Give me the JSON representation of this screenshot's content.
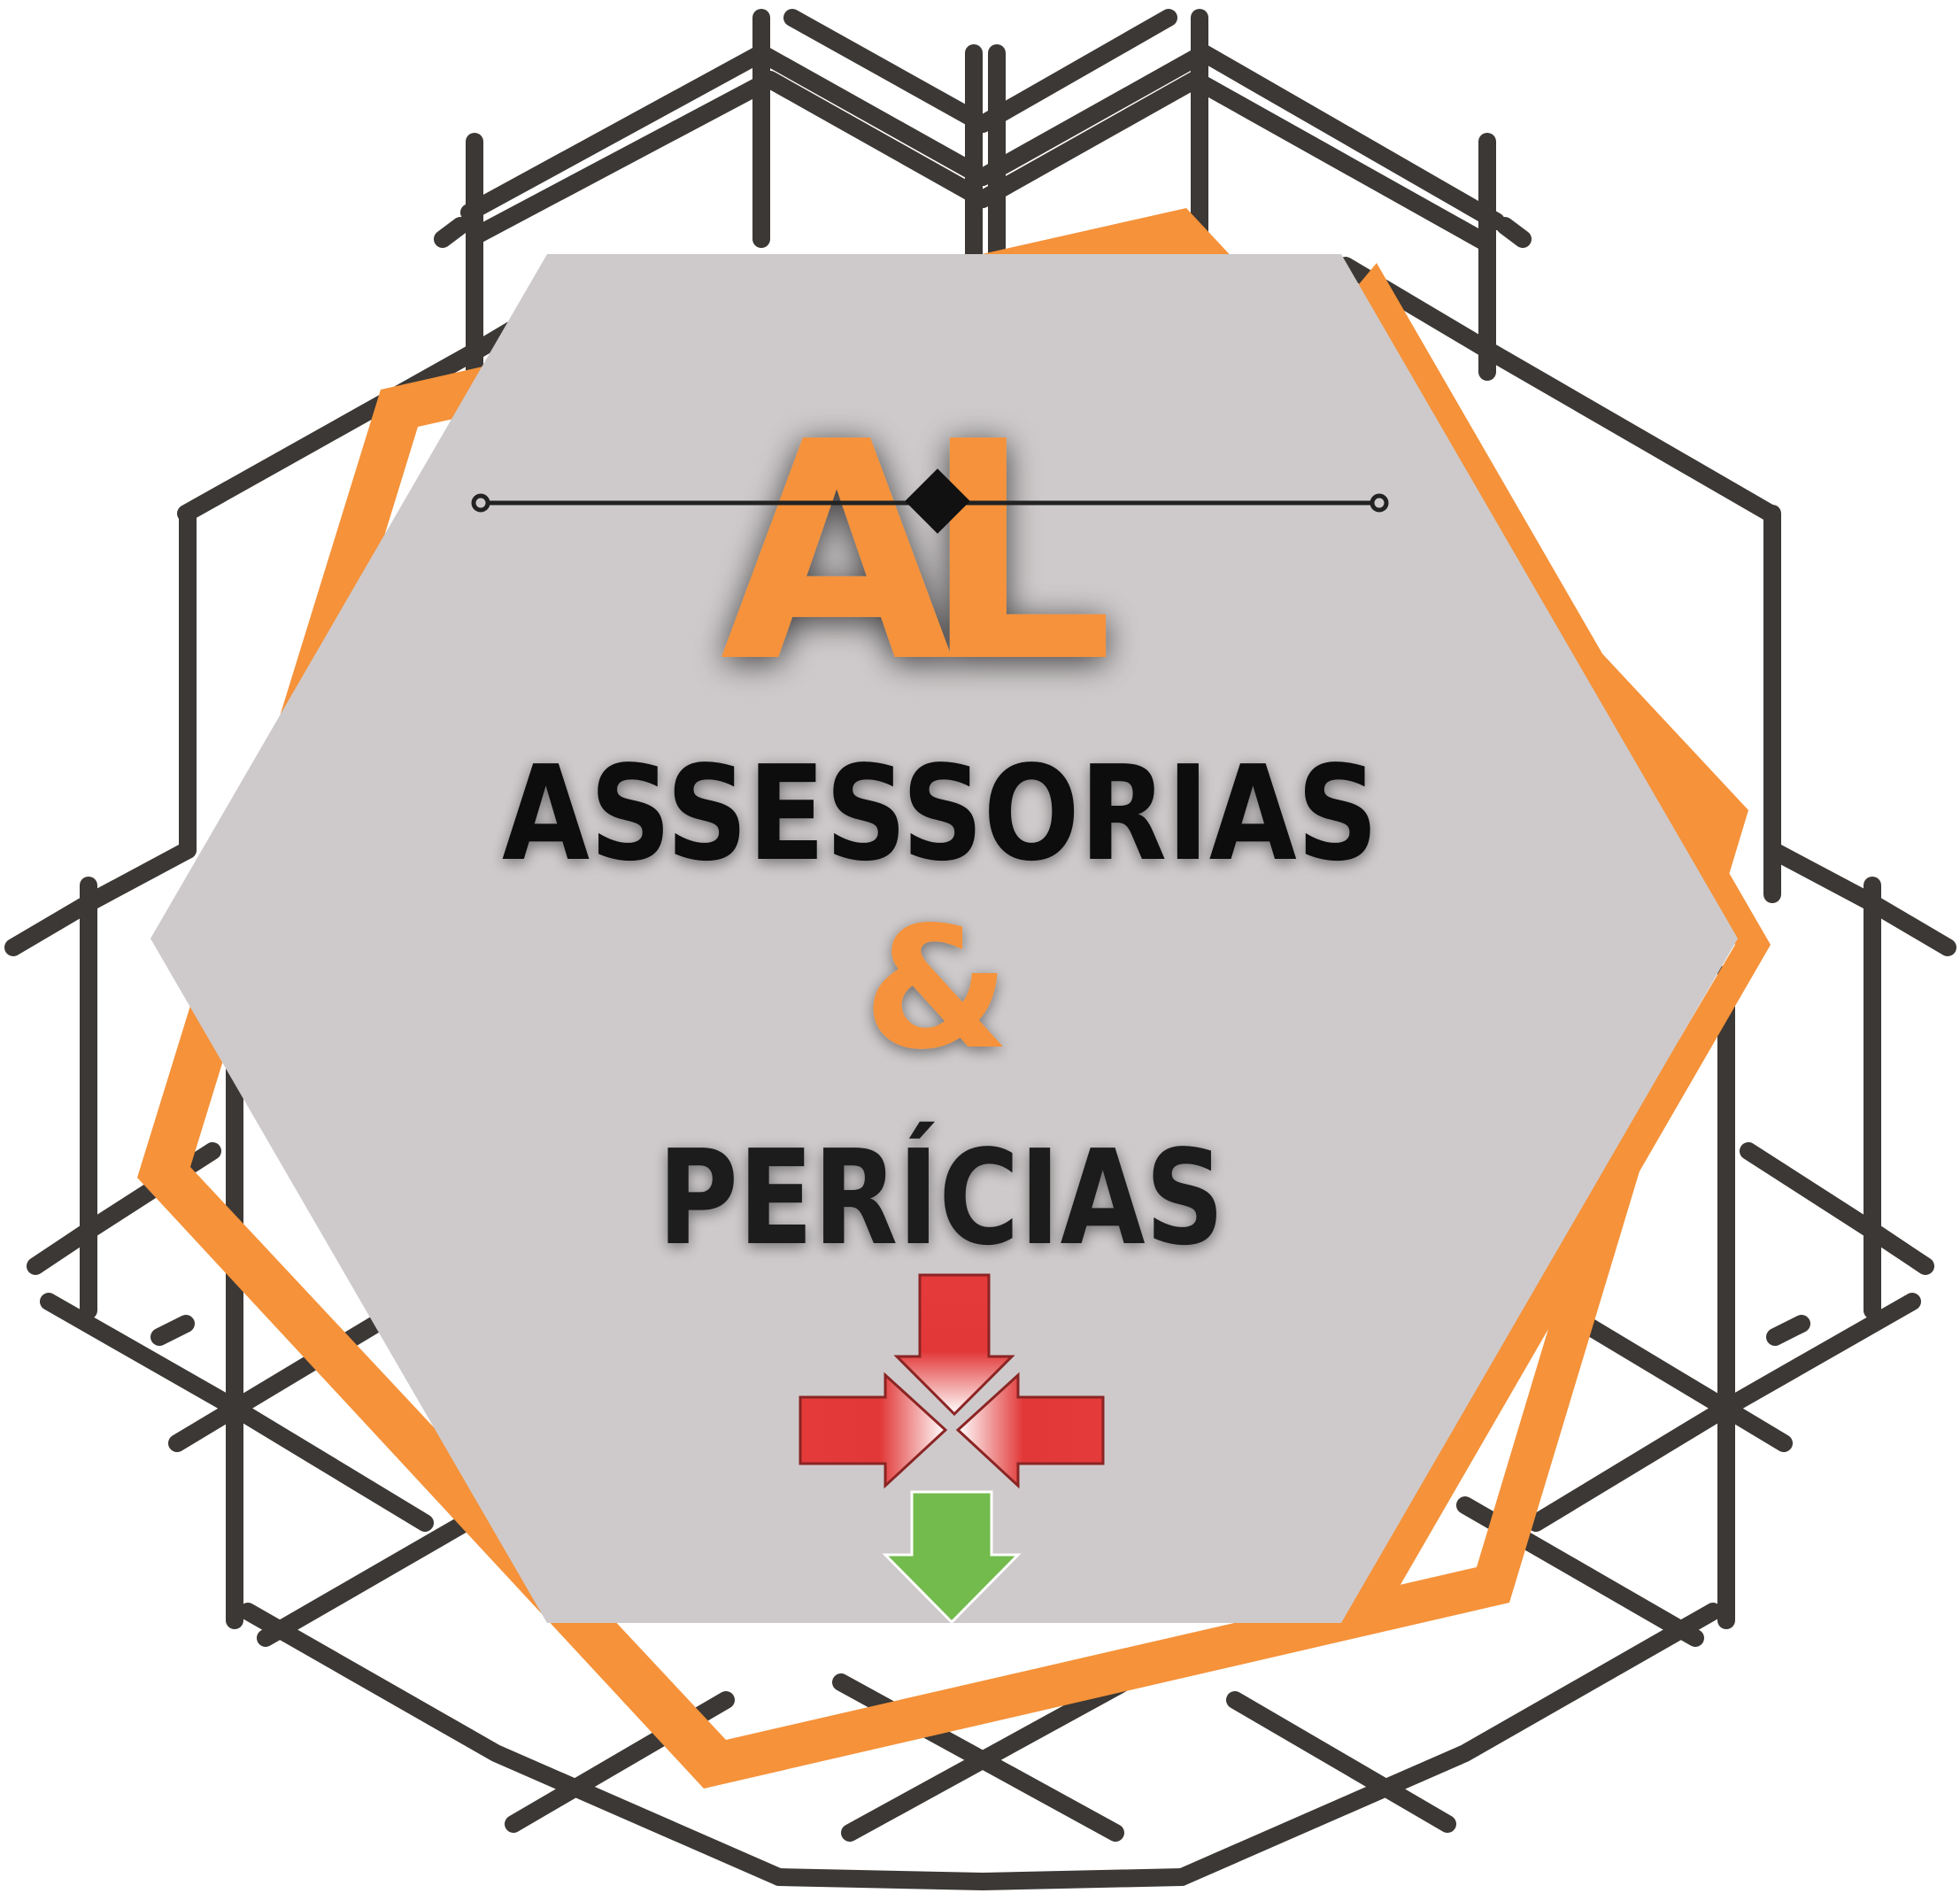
{
  "logo": {
    "monogram_left": "A",
    "monogram_right": "L",
    "line1": "ASSESSORIAS",
    "ampersand": "&",
    "line2": "PERÍCIAS"
  },
  "colors": {
    "background": "#ffffff",
    "scaffold": "#3b3835",
    "orange": "#f5923a",
    "hexagon": "#cecacb",
    "text_dark": "#111111",
    "red_arrow": "#e53a3a",
    "green_arrow": "#72bb4c"
  },
  "icons": {
    "scaffold_frame": "scaffold-lattice-icon",
    "diamond": "diamond-icon",
    "arrows_converge": "converging-red-arrows-icon",
    "arrow_down": "green-down-arrow-icon"
  }
}
